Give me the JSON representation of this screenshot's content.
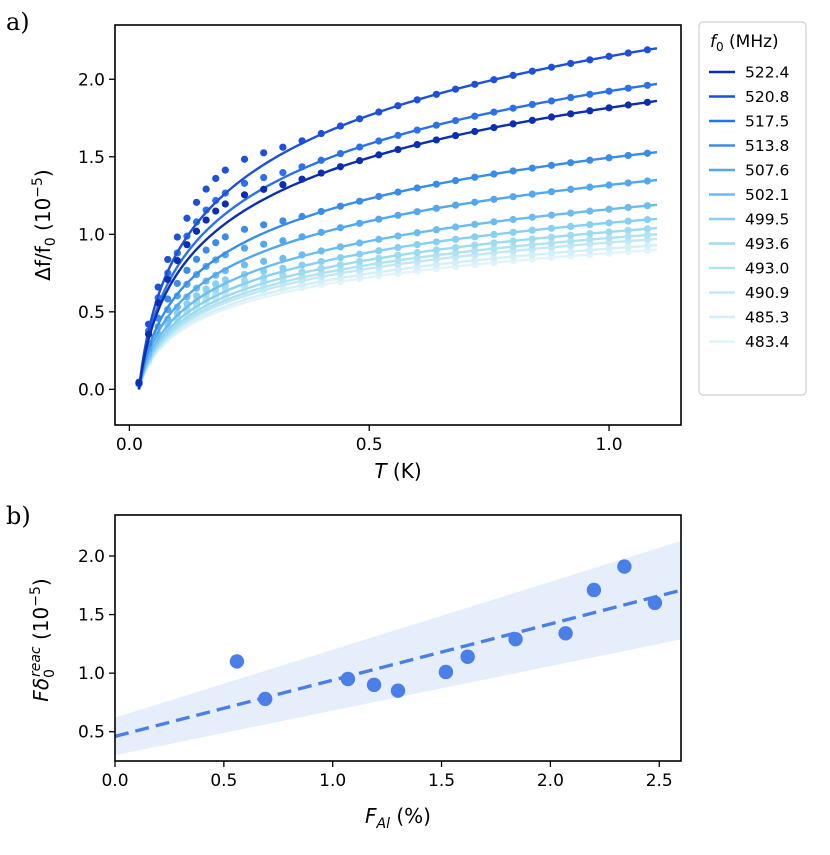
{
  "chart_data": [
    {
      "panel_label": "a)",
      "type": "line",
      "xlabel_var": "T",
      "xlabel_unit": " (K)",
      "ylabel": "Δf/f",
      "ylabel_sub": "0",
      "ylabel_unit": " (10",
      "ylabel_exp": "−5",
      "ylabel_close": ")",
      "xlim": [
        -0.03,
        1.15
      ],
      "ylim": [
        -0.23,
        2.35
      ],
      "xticks": [
        0,
        0.5,
        1.0
      ],
      "xtick_labels": [
        "0.0",
        "0.5",
        "1.0"
      ],
      "yticks": [
        0,
        0.5,
        1.0,
        1.5,
        2.0
      ],
      "ytick_labels": [
        "0.0",
        "0.5",
        "1.0",
        "1.5",
        "2.0"
      ],
      "legend": {
        "title_var": "f",
        "title_sub": "0",
        "title_unit": " (MHz)",
        "placement": "outside-right-top"
      },
      "series": [
        {
          "name": "522.4",
          "amplitude": 1.86,
          "color": "#0b2fb0"
        },
        {
          "name": "520.8",
          "amplitude": 2.2,
          "color": "#1e50d8"
        },
        {
          "name": "517.5",
          "amplitude": 1.97,
          "color": "#2b72ea"
        },
        {
          "name": "513.8",
          "amplitude": 1.53,
          "color": "#3a8ce9"
        },
        {
          "name": "507.6",
          "amplitude": 1.35,
          "color": "#52a7ee"
        },
        {
          "name": "502.1",
          "amplitude": 1.19,
          "color": "#6cbcf0"
        },
        {
          "name": "499.5",
          "amplitude": 1.1,
          "color": "#87d0f1"
        },
        {
          "name": "493.6",
          "amplitude": 1.04,
          "color": "#9ddcef"
        },
        {
          "name": "493.0",
          "amplitude": 1.0,
          "color": "#b0e3f2"
        },
        {
          "name": "490.9",
          "amplitude": 0.97,
          "color": "#c3e8f5"
        },
        {
          "name": "485.3",
          "amplitude": 0.93,
          "color": "#d3eff8"
        },
        {
          "name": "483.4",
          "amplitude": 0.9,
          "color": "#e2f4fa"
        }
      ],
      "model_note": "Each curve approximates amplitude * ln(T/0.02)/ln(1.1/0.02), T from 0.02 to 1.1 K, points every ~0.02-0.06 K"
    },
    {
      "panel_label": "b)",
      "type": "scatter",
      "xlabel_var": "F",
      "xlabel_sub": "Al",
      "xlabel_unit": " (%)",
      "ylabel_var": "Fδ",
      "ylabel_sub": "0",
      "ylabel_sup": "reac",
      "ylabel_unit": " (10",
      "ylabel_exp": "−5",
      "ylabel_close": ")",
      "xlim": [
        0.0,
        2.6
      ],
      "ylim": [
        0.25,
        2.35
      ],
      "xticks": [
        0,
        0.5,
        1.0,
        1.5,
        2.0,
        2.5
      ],
      "xtick_labels": [
        "0.0",
        "0.5",
        "1.0",
        "1.5",
        "2.0",
        "2.5"
      ],
      "yticks": [
        0.5,
        1.0,
        1.5,
        2.0
      ],
      "ytick_labels": [
        "0.5",
        "1.0",
        "1.5",
        "2.0"
      ],
      "points": {
        "x": [
          0.56,
          0.69,
          1.07,
          1.19,
          1.3,
          1.52,
          1.62,
          1.84,
          2.07,
          2.2,
          2.34,
          2.48
        ],
        "y": [
          1.1,
          0.78,
          0.95,
          0.9,
          0.85,
          1.01,
          1.14,
          1.29,
          1.34,
          1.71,
          1.91,
          1.6
        ]
      },
      "fit": {
        "intercept": 0.46,
        "slope": 0.48,
        "style": "dashed"
      },
      "band": {
        "upper_intercept": 0.62,
        "upper_slope": 0.58,
        "lower_intercept": 0.3,
        "lower_slope": 0.38
      },
      "point_color": "#4a7fe8",
      "band_color": "#e6eefc"
    }
  ]
}
